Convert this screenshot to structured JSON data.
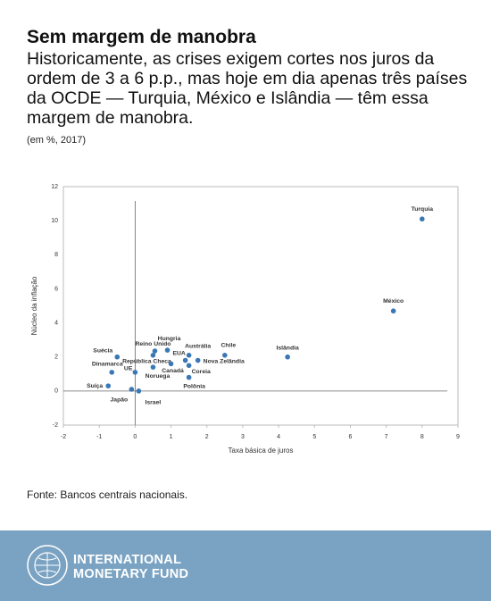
{
  "chart_data": {
    "type": "scatter",
    "title": "Sem margem de manobra",
    "subtitle": "Historicamente, as crises exigem cortes nos juros da ordem de 3 a 6 p.p., mas hoje em dia apenas três países da OCDE — Turquia, México e Islândia — têm essa margem de manobra.",
    "unit_note": "(em %, 2017)",
    "xlabel": "Taxa básica de juros",
    "ylabel": "Núcleo da inflação",
    "point_labels": [
      "Turquia",
      "México",
      "Islândia",
      "Chile",
      "Austrália",
      "Hungria",
      "Reino Unido",
      "EUA",
      "Nova Zelândia",
      "República Checa",
      "Canadá",
      "Coreia",
      "Noruega",
      "UE",
      "Dinamarca",
      "Suécia",
      "Suíça",
      "Japão",
      "Israel",
      "Polônia"
    ],
    "x": [
      8.0,
      7.2,
      4.25,
      2.5,
      1.5,
      0.9,
      0.55,
      1.4,
      1.75,
      0.5,
      1.0,
      1.5,
      0.5,
      0.0,
      -0.65,
      -0.5,
      -0.75,
      -0.1,
      0.1,
      1.5
    ],
    "values": [
      10.1,
      4.7,
      2.0,
      2.1,
      2.1,
      2.4,
      2.35,
      1.8,
      1.8,
      2.1,
      1.6,
      1.5,
      1.4,
      1.1,
      1.1,
      2.0,
      0.3,
      0.1,
      0.0,
      0.8
    ],
    "color": "#3a78b5",
    "xlim": [
      -2,
      9
    ],
    "xticks": [
      -2,
      -1,
      0,
      1,
      2,
      3,
      4,
      5,
      6,
      7,
      8,
      9
    ],
    "ylim": [
      -2,
      12
    ],
    "yticks": [
      -2,
      0,
      2,
      4,
      6,
      8,
      10,
      12
    ],
    "source": "Fonte: Bancos centrais nacionais."
  },
  "footer": {
    "org_lines": [
      "INTERNATIONAL",
      "MONETARY FUND"
    ]
  }
}
